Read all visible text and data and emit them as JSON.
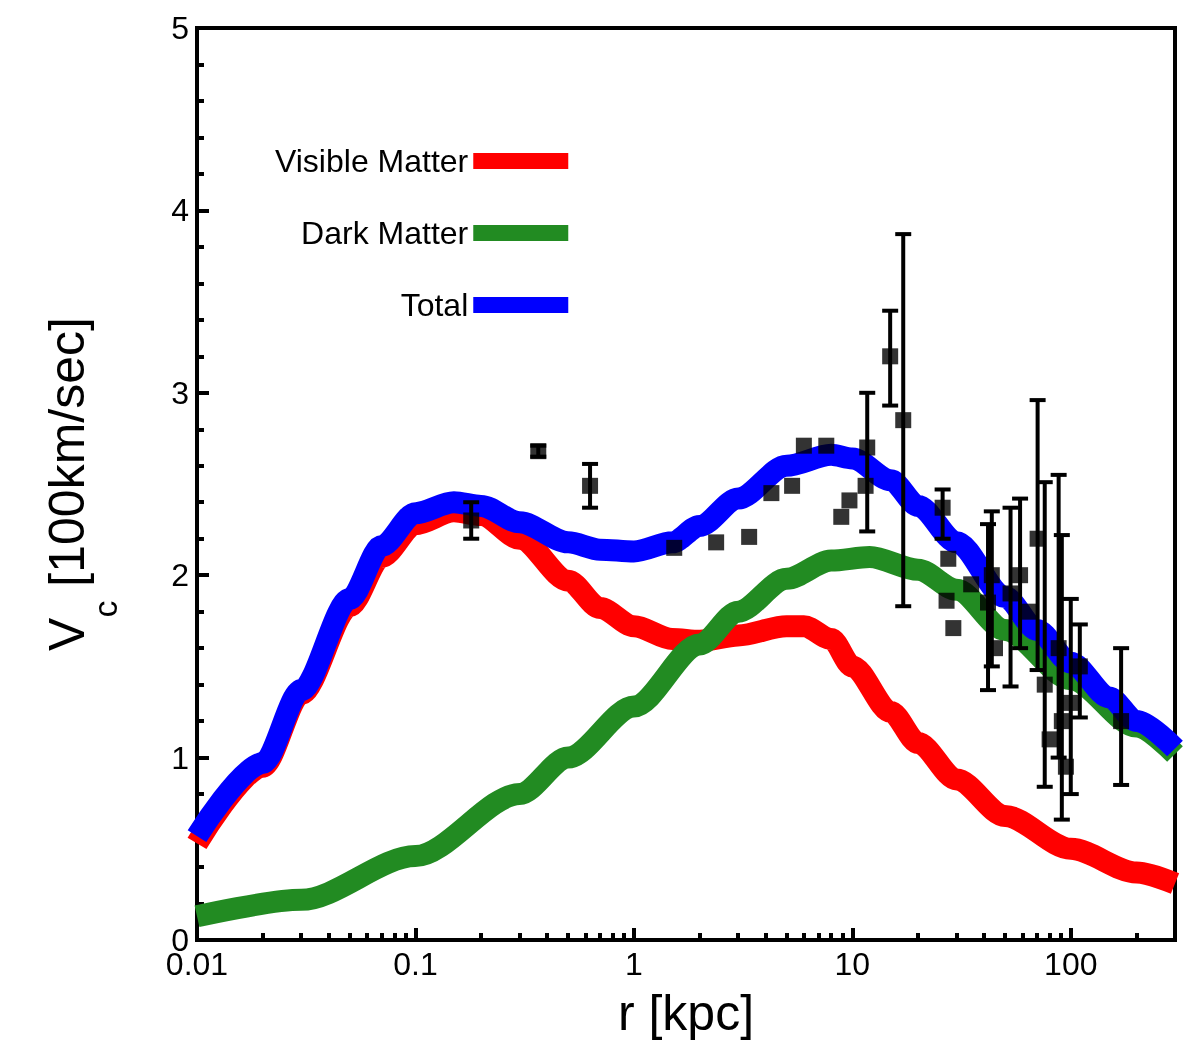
{
  "chart_data": {
    "type": "line",
    "xlabel": "r [kpc]",
    "ylabel": "V$_{c}$ [100km/sec]",
    "log": "x",
    "xlim": [
      0.01,
      300
    ],
    "xticks": [
      0.01,
      0.1,
      1,
      10,
      100
    ],
    "ylim": [
      0,
      5
    ],
    "yticks": [
      0,
      1,
      2,
      3,
      4,
      5
    ],
    "grid": false,
    "legend": "top left",
    "marker": "none",
    "line_style": "solid",
    "series": [
      {
        "name": "Visible Matter",
        "color": "#ff0000",
        "x": [
          0.01,
          0.02,
          0.03,
          0.05,
          0.07,
          0.1,
          0.15,
          0.2,
          0.3,
          0.5,
          0.7,
          1,
          1.5,
          2,
          3,
          5,
          6,
          8,
          10,
          15,
          20,
          30,
          50,
          100,
          200,
          300
        ],
        "values": [
          0.53,
          0.95,
          1.35,
          1.83,
          2.1,
          2.28,
          2.35,
          2.33,
          2.2,
          1.97,
          1.82,
          1.72,
          1.65,
          1.64,
          1.67,
          1.72,
          1.72,
          1.65,
          1.5,
          1.25,
          1.08,
          0.88,
          0.68,
          0.5,
          0.37,
          0.31
        ]
      },
      {
        "name": "Dark Matter",
        "color": "#228b22",
        "x": [
          0.01,
          0.03,
          0.1,
          0.3,
          0.5,
          1,
          2,
          3,
          5,
          8,
          12,
          20,
          30,
          50,
          100,
          200,
          300
        ],
        "values": [
          0.13,
          0.22,
          0.46,
          0.8,
          1.0,
          1.28,
          1.62,
          1.8,
          1.98,
          2.08,
          2.1,
          2.03,
          1.92,
          1.7,
          1.43,
          1.17,
          1.02
        ]
      },
      {
        "name": "Total",
        "color": "#0000ff",
        "x": [
          0.01,
          0.02,
          0.03,
          0.05,
          0.07,
          0.1,
          0.15,
          0.2,
          0.3,
          0.5,
          0.7,
          1,
          1.5,
          2,
          3,
          5,
          8,
          10,
          15,
          20,
          30,
          50,
          70,
          100,
          150,
          200,
          300
        ],
        "values": [
          0.57,
          0.97,
          1.37,
          1.87,
          2.16,
          2.34,
          2.4,
          2.38,
          2.29,
          2.18,
          2.14,
          2.13,
          2.18,
          2.27,
          2.42,
          2.6,
          2.66,
          2.64,
          2.52,
          2.38,
          2.18,
          1.88,
          1.7,
          1.52,
          1.33,
          1.2,
          1.05
        ]
      },
      {
        "type": "scatter",
        "color": "#000000",
        "marker": "square",
        "x": [
          0.18,
          0.365,
          0.63,
          1.53,
          2.38,
          3.37,
          4.26,
          5.3,
          6.0,
          7.6,
          8.9,
          9.7,
          11.5,
          11.7,
          14.9,
          17.1,
          25.9,
          27,
          29,
          27.5,
          35,
          41.8,
          43.5,
          45,
          53,
          58.6,
          65,
          70.5,
          76,
          80,
          88,
          91,
          95,
          100,
          110,
          170
        ],
        "values": [
          2.3,
          2.68,
          2.49,
          2.15,
          2.18,
          2.21,
          2.45,
          2.49,
          2.71,
          2.71,
          2.32,
          2.41,
          2.49,
          2.7,
          3.2,
          2.85,
          2.37,
          1.86,
          1.71,
          2.09,
          1.95,
          1.85,
          2.0,
          1.6,
          1.9,
          2.0,
          1.8,
          2.2,
          1.4,
          1.1,
          1.6,
          1.2,
          0.95,
          1.3,
          1.5,
          1.2
        ],
        "errors": [
          0.1,
          0.03,
          0.12,
          null,
          null,
          null,
          null,
          null,
          null,
          null,
          null,
          null,
          null,
          [
            2.24,
            3.0
          ],
          [
            2.93,
            3.45
          ],
          [
            1.83,
            3.87
          ],
          [
            2.2,
            2.47
          ],
          null,
          null,
          null,
          null,
          [
            1.37,
            2.28
          ],
          [
            1.5,
            2.35
          ],
          null,
          [
            1.39,
            2.37
          ],
          [
            1.6,
            2.42
          ],
          null,
          [
            1.48,
            2.96
          ],
          [
            0.84,
            2.51
          ],
          null,
          [
            1.0,
            2.55
          ],
          [
            0.66,
            2.22
          ],
          null,
          [
            0.8,
            1.87
          ],
          [
            1.22,
            1.73
          ],
          [
            0.85,
            1.6
          ]
        ]
      }
    ]
  }
}
